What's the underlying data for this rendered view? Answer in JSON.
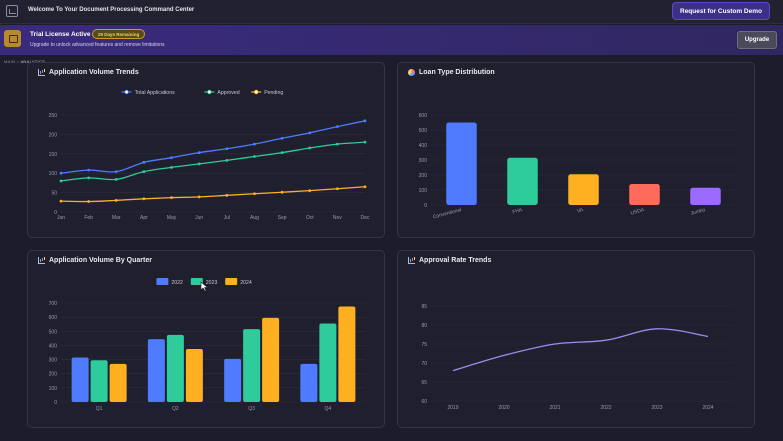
{
  "topbar": {
    "welcome": "Welcome To Your Document Processing Command Center",
    "demo_button": "Request for Custom Demo"
  },
  "trial": {
    "title": "Trial License Active",
    "days_badge": "29 Days Remaining",
    "subtitle": "Upgrade to unlock advanced features and remove limitations",
    "upgrade_button": "Upgrade"
  },
  "breadcrumb": {
    "root": "MAIN",
    "separator": ">",
    "current": "ANALYTICS"
  },
  "panels": {
    "volume_trends": {
      "title": "Application Volume Trends",
      "icon": "line-chart-icon"
    },
    "loan_type": {
      "title": "Loan Type Distribution",
      "icon": "pie-chart-icon"
    },
    "by_quarter": {
      "title": "Application Volume By Quarter",
      "icon": "bar-chart-icon"
    },
    "approval_rate": {
      "title": "Approval Rate Trends",
      "icon": "line-chart-icon"
    }
  },
  "chart_data": [
    {
      "type": "line",
      "categories": [
        "Jan",
        "Feb",
        "Mar",
        "Apr",
        "May",
        "Jun",
        "Jul",
        "Aug",
        "Sep",
        "Oct",
        "Nov",
        "Dec"
      ],
      "series": [
        {
          "name": "Total Applications",
          "color": "#4f7cff",
          "values": [
            100,
            108,
            104,
            128,
            140,
            153,
            163,
            175,
            190,
            204,
            220,
            235
          ]
        },
        {
          "name": "Approved",
          "color": "#2ecc9a",
          "values": [
            80,
            88,
            84,
            104,
            115,
            124,
            133,
            143,
            153,
            165,
            175,
            180
          ]
        },
        {
          "name": "Pending",
          "color": "#ffb020",
          "values": [
            28,
            27,
            30,
            34,
            37,
            39,
            43,
            47,
            51,
            55,
            60,
            65
          ]
        }
      ],
      "yticks": [
        0,
        50,
        100,
        150,
        200,
        250
      ],
      "ylim": [
        0,
        250
      ],
      "legend": "top-center",
      "grid": true
    },
    {
      "type": "bar",
      "categories": [
        "Conventional",
        "FHA",
        "VA",
        "USDA",
        "Jumbo"
      ],
      "values": [
        550,
        315,
        205,
        140,
        115
      ],
      "colors": [
        "#4f7cff",
        "#2ecc9a",
        "#ffb020",
        "#ff6b5a",
        "#9b6bff"
      ],
      "yticks": [
        0,
        100,
        200,
        300,
        400,
        500,
        600
      ],
      "ylim": [
        0,
        600
      ],
      "grid": true
    },
    {
      "type": "bar",
      "categories": [
        "Q1",
        "Q2",
        "Q3",
        "Q4"
      ],
      "series": [
        {
          "name": "2022",
          "color": "#4f7cff",
          "values": [
            315,
            445,
            305,
            270
          ]
        },
        {
          "name": "2023",
          "color": "#2ecc9a",
          "values": [
            295,
            475,
            515,
            555
          ]
        },
        {
          "name": "2024",
          "color": "#ffb020",
          "values": [
            270,
            375,
            595,
            675
          ]
        }
      ],
      "yticks": [
        0,
        100,
        200,
        300,
        400,
        500,
        600,
        700
      ],
      "ylim": [
        0,
        700
      ],
      "legend": "top-center",
      "grid": true
    },
    {
      "type": "line",
      "categories": [
        "2019",
        "2020",
        "2021",
        "2022",
        "2023",
        "2024"
      ],
      "series": [
        {
          "name": "",
          "color": "#9b8cf0",
          "values": [
            68,
            72,
            75,
            76,
            79,
            77
          ]
        }
      ],
      "yticks": [
        60,
        65,
        70,
        75,
        80,
        85
      ],
      "ylim": [
        60,
        85
      ],
      "grid": true
    }
  ]
}
